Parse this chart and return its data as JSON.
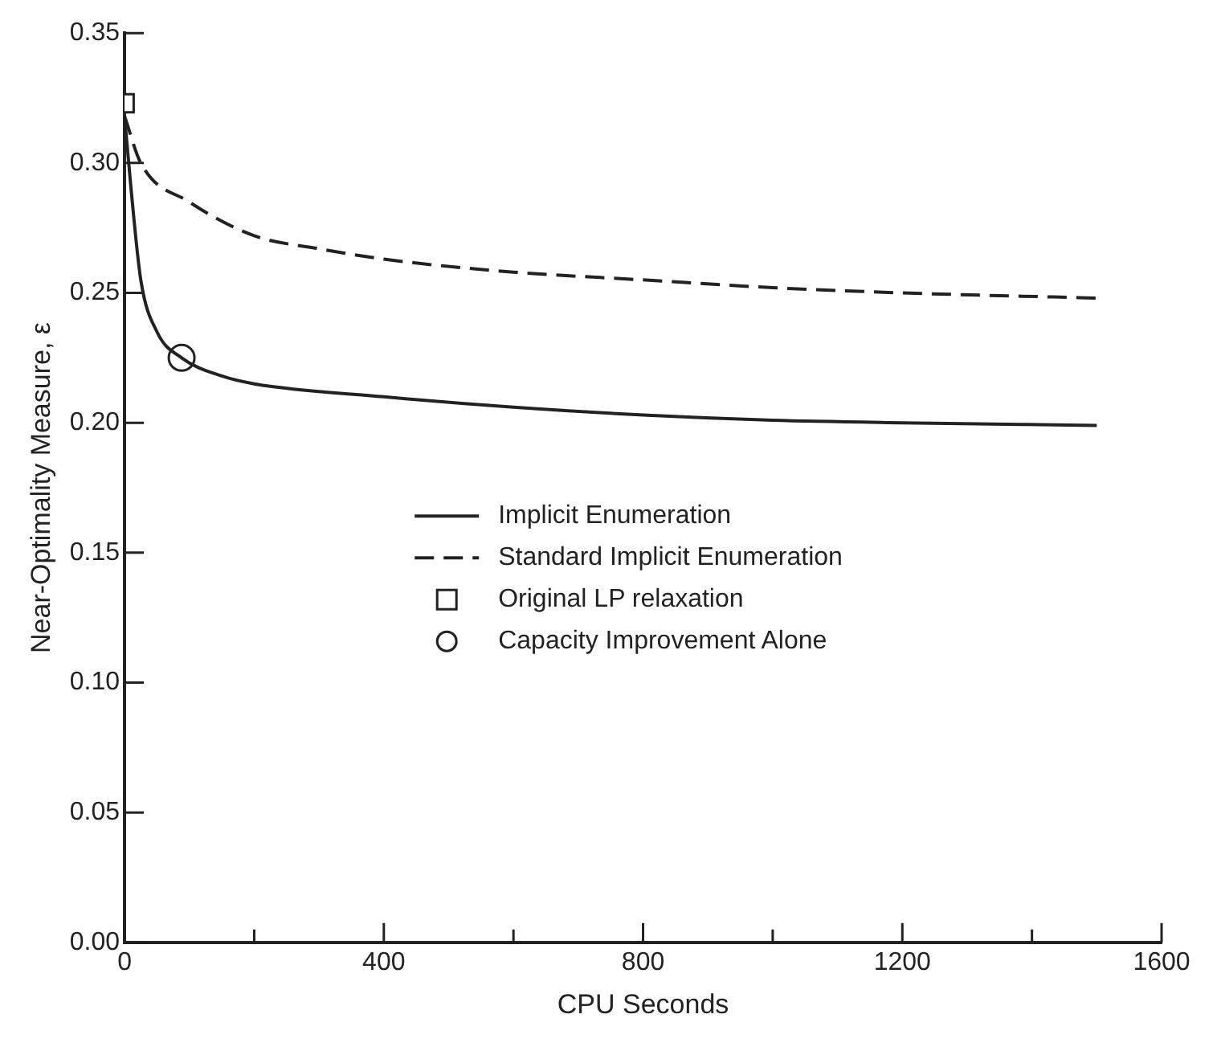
{
  "chart_data": {
    "type": "line",
    "xlabel": "CPU Seconds",
    "ylabel": "Near-Optimality Measure, ε",
    "xlim": [
      0,
      1600
    ],
    "ylim": [
      0,
      0.35
    ],
    "xticks": [
      0,
      {
        "value": 200,
        "label": null
      },
      400,
      {
        "value": 600,
        "label": null
      },
      800,
      {
        "value": 1000,
        "label": null
      },
      1200,
      {
        "value": 1400,
        "label": null
      },
      1600
    ],
    "yticks": [
      {
        "value": 0,
        "label": "0.00"
      },
      {
        "value": 0.05,
        "label": "0.05"
      },
      {
        "value": 0.1,
        "label": "0.10"
      },
      {
        "value": 0.15,
        "label": "0.15"
      },
      {
        "value": 0.2,
        "label": "0.20"
      },
      {
        "value": 0.25,
        "label": "0.25"
      },
      {
        "value": 0.3,
        "label": "0.30"
      },
      {
        "value": 0.35,
        "label": "0.35"
      }
    ],
    "grid": false,
    "legend": "center",
    "series": [
      {
        "name": "Implicit Enumeration",
        "color": "#222222",
        "line_style": "solid",
        "marker": "none",
        "x": [
          0,
          10,
          25,
          50,
          88,
          150,
          200,
          400,
          600,
          800,
          1000,
          1200,
          1500
        ],
        "values": [
          0.318,
          0.29,
          0.255,
          0.235,
          0.225,
          0.218,
          0.215,
          0.21,
          0.206,
          0.203,
          0.201,
          0.2,
          0.199
        ]
      },
      {
        "name": "Standard Implicit Enumeration",
        "color": "#222222",
        "line_style": "dashed",
        "marker": "none",
        "x": [
          0,
          25,
          100,
          200,
          300,
          400,
          600,
          800,
          1000,
          1200,
          1500
        ],
        "values": [
          0.318,
          0.3,
          0.285,
          0.272,
          0.267,
          0.263,
          0.258,
          0.255,
          0.252,
          0.25,
          0.248
        ]
      },
      {
        "name": "Original LP relaxation",
        "type": "scatter",
        "color": "#222222",
        "marker": "square",
        "x": [
          0
        ],
        "values": [
          0.323
        ]
      },
      {
        "name": "Capacity Improvement Alone",
        "type": "scatter",
        "color": "#222222",
        "marker": "circle",
        "x": [
          88
        ],
        "values": [
          0.225
        ]
      }
    ]
  }
}
